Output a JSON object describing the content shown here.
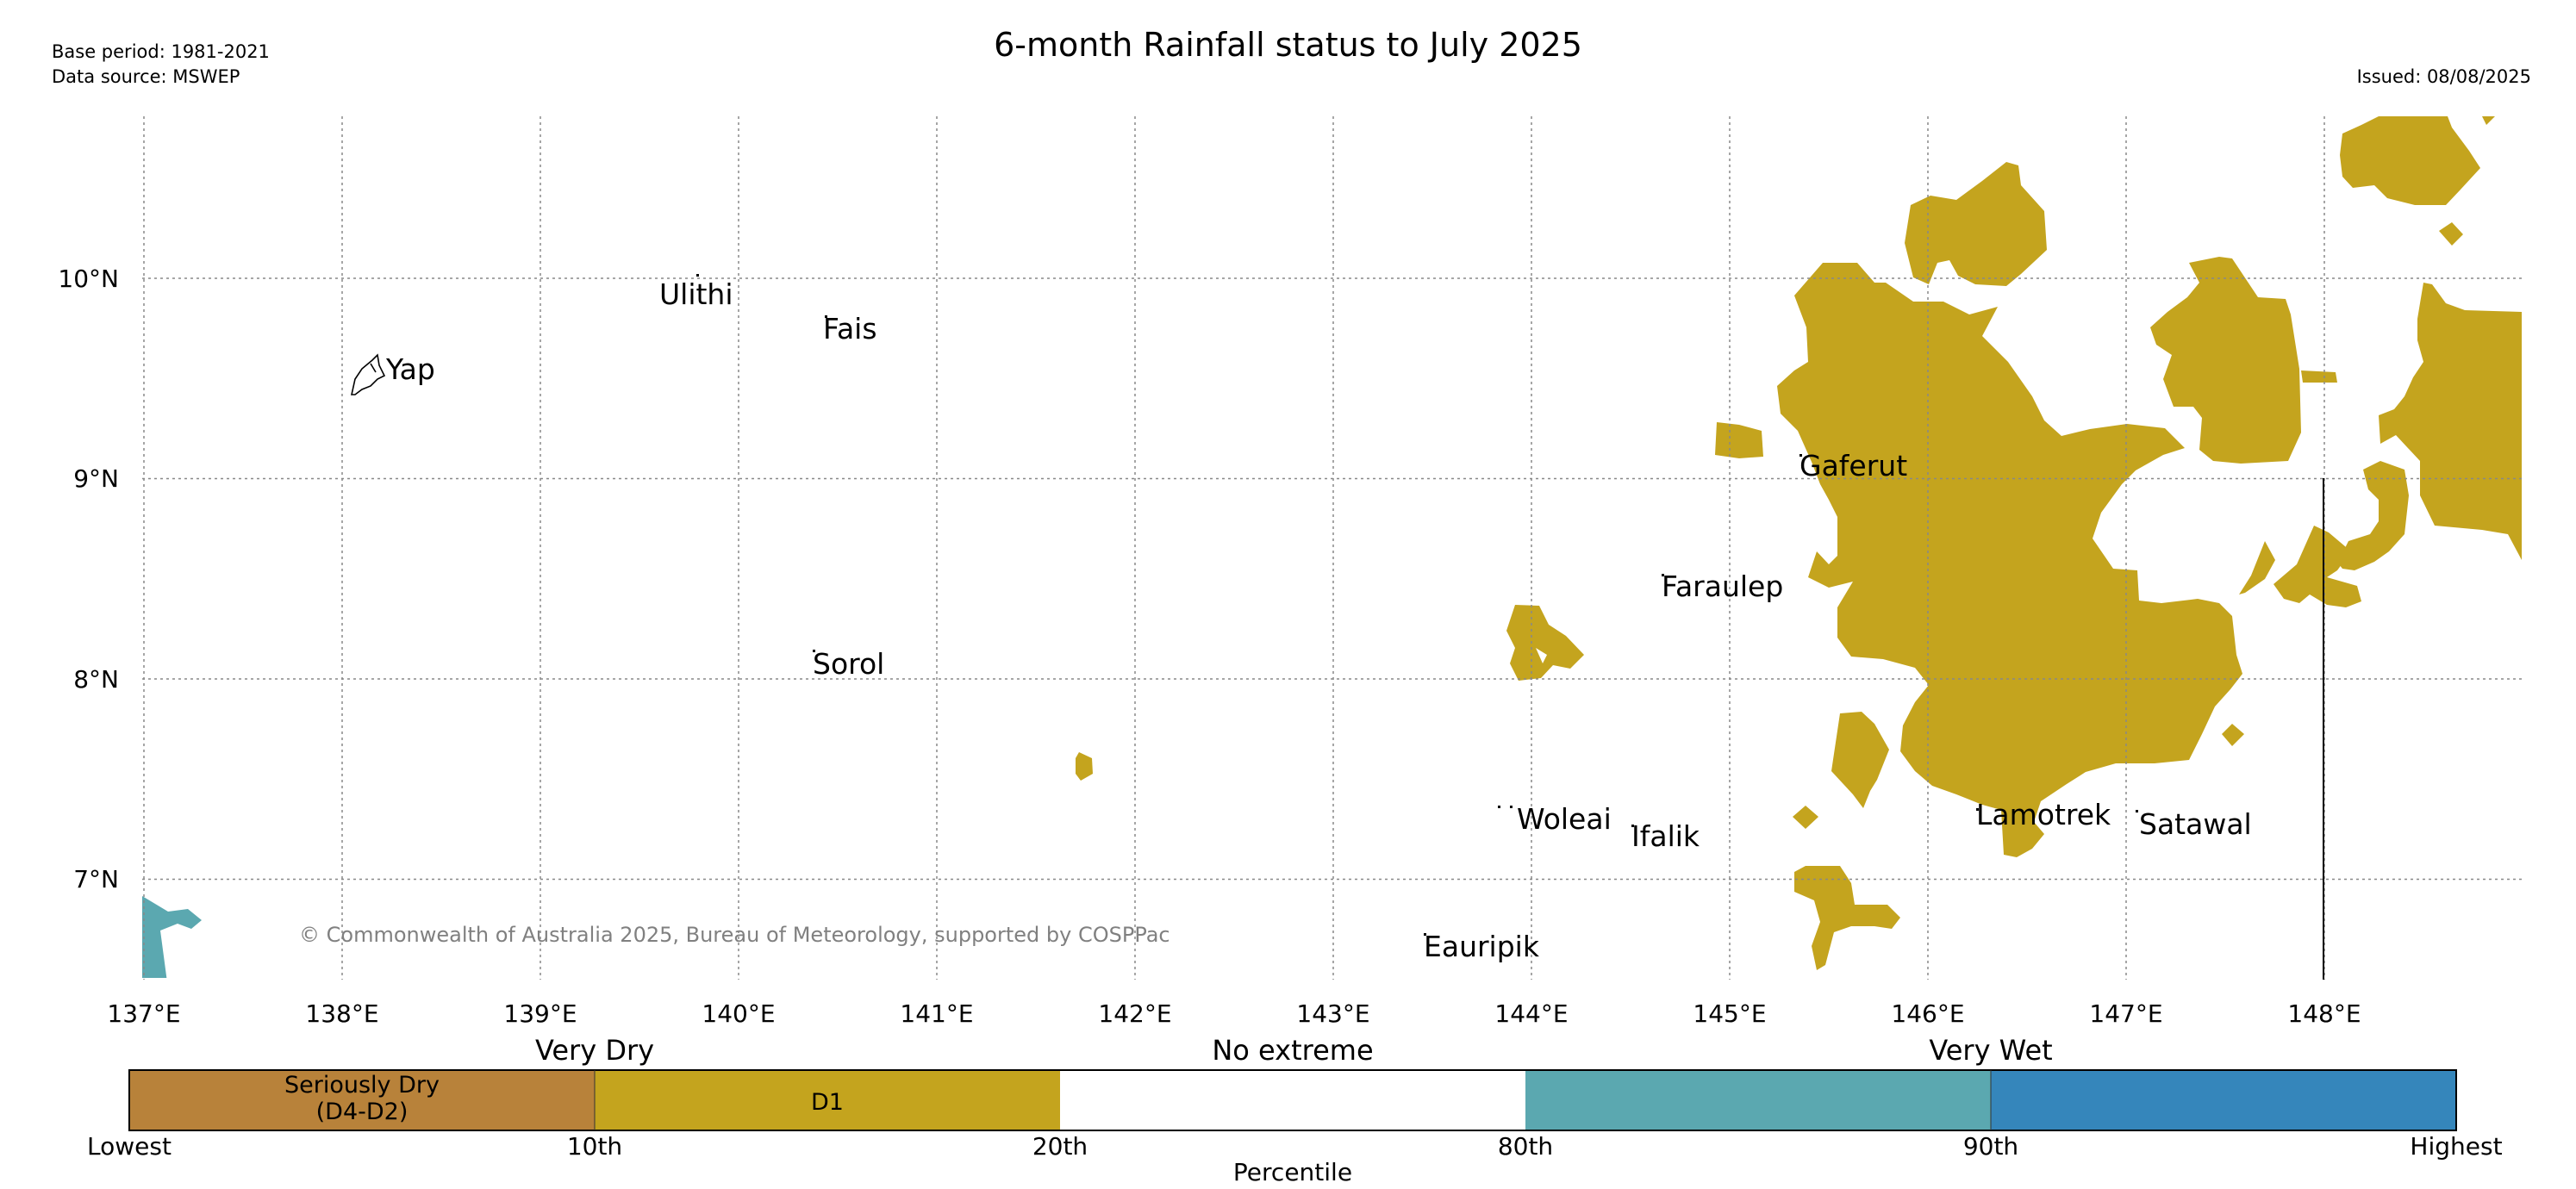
{
  "header": {
    "title": "6-month Rainfall status to July 2025",
    "base_period": "Base period: 1981-2021",
    "data_source": "Data source: MSWEP",
    "issued": "Issued: 08/08/2025"
  },
  "map": {
    "lon_labels": [
      "137°E",
      "138°E",
      "139°E",
      "140°E",
      "141°E",
      "142°E",
      "143°E",
      "144°E",
      "145°E",
      "146°E",
      "147°E",
      "148°E"
    ],
    "lat_labels": [
      "10°N",
      "9°N",
      "8°N",
      "7°N"
    ],
    "copyright": "© Commonwealth of Australia 2025, Bureau of Meteorology, supported by COSPPac",
    "places": [
      "Yap",
      "Ulithi",
      "Fais",
      "Sorol",
      "Gaferut",
      "Faraulep",
      "Woleai",
      "Ifalik",
      "Lamotrek",
      "Satawal",
      "Eauripik"
    ]
  },
  "legend": {
    "group_labels": [
      "Very Dry",
      "No extreme",
      "Very Wet"
    ],
    "segment_labels": [
      "Seriously Dry",
      "(D4-D2)",
      "D1"
    ],
    "ticks": [
      "Lowest",
      "10th",
      "20th",
      "80th",
      "90th",
      "Highest"
    ],
    "axis_label": "Percentile",
    "colors": {
      "seriously_dry": "#b8823a",
      "d1": "#c4a41e",
      "no_extreme": "#ffffff",
      "very_wet_low": "#5ba8b0",
      "very_wet_high": "#3586bb"
    }
  }
}
